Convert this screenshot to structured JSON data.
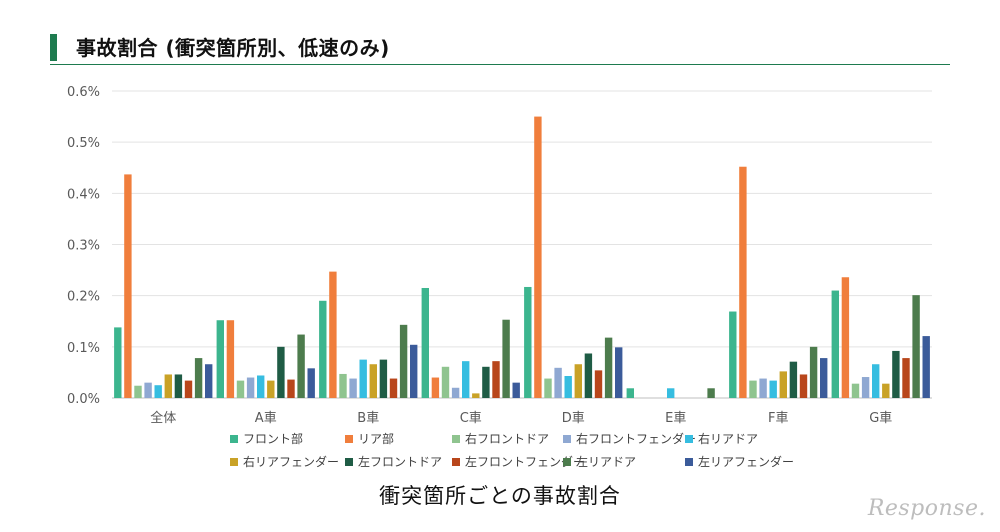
{
  "header": {
    "title": "事故割合 (衝突箇所別、低速のみ)"
  },
  "caption": "衝突箇所ごとの事故割合",
  "logo_text": "Response.",
  "colors": {
    "accent": "#1e7b4f"
  },
  "chart_data": {
    "type": "bar",
    "title": "",
    "xlabel": "",
    "ylabel": "",
    "ylim": [
      0,
      0.6
    ],
    "yticks": [
      0.0,
      0.1,
      0.2,
      0.3,
      0.4,
      0.5,
      0.6
    ],
    "ytick_labels": [
      "0.0%",
      "0.1%",
      "0.2%",
      "0.3%",
      "0.4%",
      "0.5%",
      "0.6%"
    ],
    "grid": true,
    "legend_position": "bottom",
    "categories": [
      "全体",
      "A車",
      "B車",
      "C車",
      "D車",
      "E車",
      "F車",
      "G車"
    ],
    "series": [
      {
        "name": "フロント部",
        "color": "#3cb58e",
        "values": [
          0.138,
          0.152,
          0.19,
          0.215,
          0.217,
          0.019,
          0.169,
          0.21
        ]
      },
      {
        "name": "リア部",
        "color": "#f07e3c",
        "values": [
          0.437,
          0.152,
          0.247,
          0.04,
          0.55,
          0,
          0.452,
          0.236
        ]
      },
      {
        "name": "右フロントドア",
        "color": "#8fc48f",
        "values": [
          0.024,
          0.034,
          0.047,
          0.061,
          0.038,
          0,
          0.034,
          0.028
        ]
      },
      {
        "name": "右フロントフェンダー",
        "color": "#8fa8d2",
        "values": [
          0.03,
          0.04,
          0.038,
          0.02,
          0.059,
          0,
          0.038,
          0.041
        ]
      },
      {
        "name": "右リアドア",
        "color": "#36bde0",
        "values": [
          0.025,
          0.044,
          0.075,
          0.072,
          0.043,
          0.019,
          0.034,
          0.066
        ]
      },
      {
        "name": "右リアフェンダー",
        "color": "#c9a227",
        "values": [
          0.046,
          0.034,
          0.066,
          0.009,
          0.066,
          0,
          0.052,
          0.028
        ]
      },
      {
        "name": "左フロントドア",
        "color": "#1f5c45",
        "values": [
          0.046,
          0.1,
          0.075,
          0.061,
          0.087,
          0,
          0.071,
          0.092
        ]
      },
      {
        "name": "左フロントフェンダー",
        "color": "#b8461b",
        "values": [
          0.034,
          0.036,
          0.038,
          0.072,
          0.054,
          0,
          0.046,
          0.078
        ]
      },
      {
        "name": "左リアドア",
        "color": "#4d7c4d",
        "values": [
          0.078,
          0.124,
          0.143,
          0.153,
          0.118,
          0.019,
          0.1,
          0.201
        ]
      },
      {
        "name": "左リアフェンダー",
        "color": "#3b5b9a",
        "values": [
          0.066,
          0.058,
          0.104,
          0.03,
          0.099,
          0,
          0.078,
          0.121
        ]
      }
    ]
  }
}
